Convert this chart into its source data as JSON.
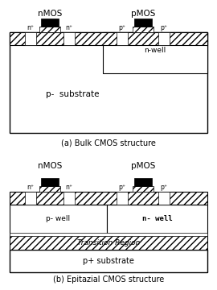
{
  "fig_width": 2.7,
  "fig_height": 3.6,
  "dpi": 100,
  "bg_color": "#ffffff",
  "diagram_a": {
    "title_nmos": "nMOS",
    "title_pmos": "pMOS",
    "caption": "(a) Bulk CMOS structure",
    "substrate_label": "p-  substrate",
    "nwell_label": "n-well"
  },
  "diagram_b": {
    "title_nmos": "nMOS",
    "title_pmos": "pMOS",
    "caption": "(b) Epitazial CMOS structure",
    "pwell_label": "p- well",
    "nwell_label": "n- well",
    "transition_label": "Transition Region",
    "substrate_label": "p+ substrate"
  }
}
